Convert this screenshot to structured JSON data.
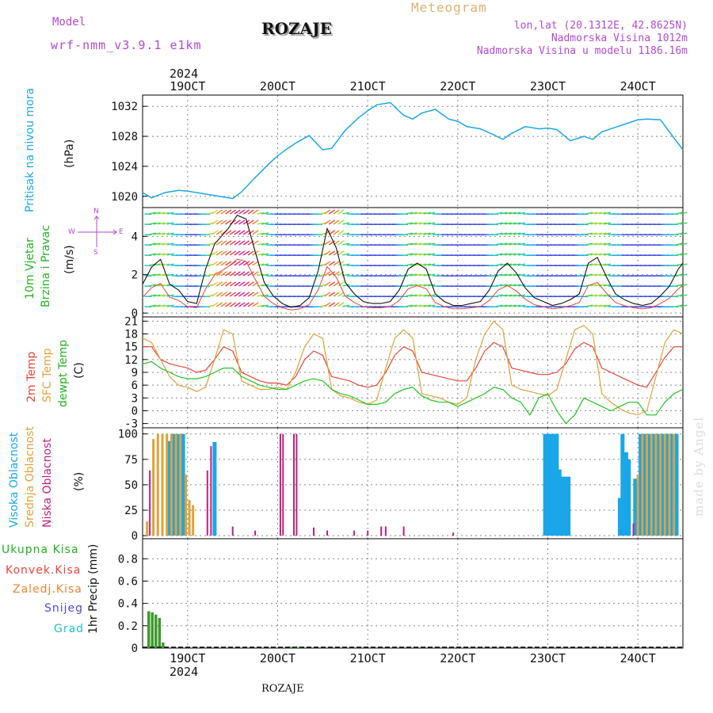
{
  "header": {
    "model_label": "Model",
    "model_name": "wrf-nmm_v3.9.1 e1km",
    "station": "ROZAJE",
    "meteogram": "Meteogram",
    "lonlat": "lon,lat (20.1312E, 42.8625N)",
    "elev": "Nadmorska Visina 1012m",
    "elev_model": "Nadmorska Visina u modelu 1186.16m",
    "year": "2024",
    "footer": "ROZAJE",
    "watermark": "made by Angel"
  },
  "colors": {
    "pressure": "#1aa6e8",
    "temp2m": "#e8453c",
    "sfc": "#e0a23a",
    "dew": "#22c322",
    "high": "#1aa6e8",
    "mid": "#e0a23a",
    "low": "#c0207e",
    "total": "#3d9b2d",
    "conv": "#e8453c",
    "frozen": "#f08232",
    "snow": "#4b4be0",
    "grad": "#22c3c3",
    "model": "#b04ad6"
  },
  "chart_data": [
    {
      "type": "line",
      "panel": "pressure",
      "ylabel_name": "Pritisak na nivou mora",
      "ylabel_unit": "(hPa)",
      "yticks": [
        1020,
        1024,
        1028,
        1032
      ],
      "ylim": [
        1018.5,
        1033.5
      ],
      "x": [
        18.5,
        18.6,
        18.75,
        18.9,
        19.0,
        19.2,
        19.35,
        19.5,
        19.6,
        19.75,
        19.9,
        20.0,
        20.1,
        20.2,
        20.35,
        20.5,
        20.6,
        20.75,
        20.9,
        21.0,
        21.1,
        21.25,
        21.4,
        21.5,
        21.6,
        21.75,
        21.9,
        22.0,
        22.1,
        22.25,
        22.4,
        22.5,
        22.6,
        22.75,
        22.9,
        23.0,
        23.1,
        23.25,
        23.4,
        23.5,
        23.6,
        23.75,
        23.9,
        24.0,
        24.1,
        24.25,
        24.4,
        24.5
      ],
      "values": [
        1020.5,
        1019.8,
        1020.5,
        1020.8,
        1020.7,
        1020.3,
        1020.0,
        1019.7,
        1020.6,
        1022.5,
        1024.3,
        1025.4,
        1026.3,
        1027.1,
        1028.1,
        1026.2,
        1026.4,
        1028.8,
        1030.5,
        1031.4,
        1032.2,
        1032.5,
        1030.8,
        1030.3,
        1031.1,
        1031.6,
        1030.3,
        1030.0,
        1029.3,
        1029.0,
        1028.2,
        1027.6,
        1028.4,
        1029.3,
        1029.0,
        1029.1,
        1028.9,
        1027.4,
        1028.0,
        1027.6,
        1028.6,
        1029.2,
        1029.8,
        1030.2,
        1030.3,
        1030.2,
        1027.8,
        1026.2
      ],
      "xticks": [
        "19OCT",
        "20OCT",
        "21OCT",
        "22OCT",
        "23OCT",
        "24OCT"
      ]
    },
    {
      "type": "line",
      "panel": "wind",
      "ylabel_name": "10m Vjetar",
      "ylabel_name2": "Brzina i Pravac",
      "ylabel_unit": "(m/s)",
      "compass_n": "N",
      "compass_w": "W",
      "compass_e": "E",
      "compass_s": "S",
      "yticks": [
        0,
        2,
        4
      ],
      "ylim": [
        -0.2,
        5.5
      ],
      "x": [
        18.5,
        18.6,
        18.7,
        18.8,
        18.9,
        19.0,
        19.1,
        19.2,
        19.3,
        19.45,
        19.55,
        19.65,
        19.75,
        19.85,
        19.95,
        20.05,
        20.15,
        20.25,
        20.35,
        20.45,
        20.55,
        20.65,
        20.75,
        20.85,
        20.95,
        21.05,
        21.15,
        21.25,
        21.35,
        21.45,
        21.55,
        21.65,
        21.75,
        21.85,
        21.95,
        22.05,
        22.15,
        22.25,
        22.35,
        22.45,
        22.55,
        22.65,
        22.75,
        22.85,
        22.95,
        23.05,
        23.15,
        23.25,
        23.35,
        23.45,
        23.55,
        23.65,
        23.75,
        23.85,
        23.95,
        24.05,
        24.15,
        24.25,
        24.35,
        24.45,
        24.5
      ],
      "values": [
        1.5,
        2.4,
        2.8,
        1.5,
        1.2,
        0.6,
        0.5,
        2.3,
        3.6,
        4.4,
        5.1,
        4.9,
        3.2,
        1.6,
        0.9,
        0.5,
        0.3,
        0.4,
        0.8,
        2.2,
        4.4,
        3.4,
        1.6,
        1.0,
        0.6,
        0.5,
        0.5,
        0.6,
        1.2,
        2.3,
        2.6,
        2.3,
        1.0,
        0.6,
        0.4,
        0.4,
        0.5,
        0.6,
        1.2,
        2.2,
        2.6,
        2.1,
        1.3,
        0.8,
        0.6,
        0.4,
        0.5,
        0.7,
        1.0,
        2.6,
        2.9,
        1.9,
        1.0,
        0.7,
        0.5,
        0.4,
        0.5,
        0.9,
        1.4,
        2.3,
        2.6
      ]
    },
    {
      "type": "line",
      "panel": "temperature",
      "ylabel_2m": "2m Temp",
      "ylabel_sfc": "SFC Temp",
      "ylabel_dew": "dewpt Temp",
      "ylabel_unit": "(C)",
      "yticks": [
        -3,
        0,
        3,
        6,
        9,
        12,
        15,
        18,
        21
      ],
      "ylim": [
        -4,
        22
      ],
      "x": [
        18.5,
        18.6,
        18.7,
        18.8,
        18.9,
        19.0,
        19.1,
        19.2,
        19.3,
        19.4,
        19.5,
        19.6,
        19.7,
        19.8,
        19.9,
        20.0,
        20.1,
        20.2,
        20.3,
        20.4,
        20.5,
        20.6,
        20.7,
        20.8,
        20.9,
        21.0,
        21.1,
        21.2,
        21.3,
        21.4,
        21.5,
        21.6,
        21.7,
        21.8,
        21.9,
        22.0,
        22.1,
        22.2,
        22.3,
        22.4,
        22.5,
        22.6,
        22.7,
        22.8,
        22.9,
        23.0,
        23.1,
        23.2,
        23.3,
        23.4,
        23.5,
        23.6,
        23.7,
        23.8,
        23.9,
        24.0,
        24.1,
        24.2,
        24.3,
        24.4,
        24.5
      ],
      "series": [
        {
          "name": "2m Temp",
          "values": [
            15,
            15,
            12,
            11,
            10.5,
            10,
            9,
            9.5,
            12,
            15,
            14,
            9,
            8,
            7,
            6.5,
            6.5,
            6,
            8,
            12,
            14,
            13,
            8,
            7.5,
            7,
            6,
            5.5,
            6,
            9,
            13,
            15,
            14,
            9,
            8.5,
            8,
            7.5,
            7,
            7,
            10,
            14,
            16,
            15,
            10,
            9.5,
            9,
            8.5,
            8.5,
            9,
            11,
            14.5,
            16,
            15,
            10,
            9,
            8,
            7,
            6,
            5.5,
            9,
            12.5,
            15,
            15
          ]
        },
        {
          "name": "SFC Temp",
          "values": [
            17,
            16,
            12,
            8,
            6,
            5.5,
            4.5,
            5.5,
            12,
            19,
            18,
            7,
            6,
            5,
            5,
            5.5,
            5,
            9,
            15,
            18,
            17,
            5,
            3.5,
            3,
            2,
            1.5,
            2.5,
            10,
            17,
            19,
            17,
            4,
            3.5,
            3,
            2,
            1.5,
            3,
            12,
            18,
            21,
            19,
            6,
            5,
            4.5,
            4,
            3.5,
            5,
            12,
            19,
            20,
            18,
            4,
            2,
            0.5,
            -0.5,
            -1,
            0,
            8,
            16,
            19,
            18
          ]
        },
        {
          "name": "dewpt Temp",
          "values": [
            11,
            11.5,
            10,
            9,
            8,
            7.5,
            7.5,
            8,
            9,
            10,
            10,
            8,
            7,
            6,
            5.5,
            5,
            5,
            6,
            7,
            7.5,
            7,
            5,
            4,
            3.5,
            2.5,
            1.5,
            1.5,
            2,
            4,
            5,
            5.5,
            3.5,
            2.5,
            2,
            2,
            1,
            2,
            3,
            4,
            5.5,
            5,
            3,
            2,
            -1,
            3,
            4,
            0,
            -3,
            -1,
            3,
            2,
            1,
            0,
            1,
            2,
            2,
            -1,
            -1,
            2,
            4,
            5
          ]
        }
      ]
    },
    {
      "type": "bar",
      "panel": "clouds",
      "ylabel_high": "Visoka Oblacnost",
      "ylabel_mid": "Srednja Oblacnost",
      "ylabel_low": "Niska Oblacnost",
      "ylabel_unit": "(%)",
      "yticks": [
        0,
        25,
        50,
        75,
        100
      ],
      "ylim": [
        -3,
        106
      ],
      "series": [
        {
          "name": "Visoka Oblacnost",
          "x": [
            18.8,
            18.85,
            18.9,
            18.95,
            19.3,
            22.97,
            23.0,
            23.03,
            23.07,
            23.1,
            23.13,
            23.17,
            23.2,
            23.23,
            23.8,
            23.83,
            23.87,
            23.9,
            23.97,
            24.0,
            24.03,
            24.07,
            24.1,
            24.13,
            24.17,
            24.2,
            24.23,
            24.27,
            24.3,
            24.33,
            24.37,
            24.4,
            24.43
          ],
          "values": [
            93,
            100,
            100,
            100,
            92,
            100,
            100,
            100,
            100,
            100,
            65,
            58,
            58,
            58,
            37,
            100,
            82,
            75,
            56,
            49,
            100,
            100,
            100,
            100,
            100,
            100,
            100,
            100,
            100,
            100,
            100,
            100,
            100
          ]
        },
        {
          "name": "Srednja Oblacnost",
          "x": [
            18.55,
            18.62,
            18.67,
            18.72,
            18.77,
            18.82,
            18.87,
            18.92,
            18.98,
            19.02,
            19.06,
            24.0,
            24.05,
            24.1,
            24.15,
            24.2,
            24.25,
            24.3,
            24.35,
            24.4
          ],
          "values": [
            14,
            95,
            100,
            100,
            100,
            100,
            100,
            100,
            60,
            35,
            30,
            60,
            100,
            100,
            100,
            100,
            100,
            100,
            100,
            100
          ]
        },
        {
          "name": "Niska Oblacnost",
          "x": [
            18.58,
            19.22,
            19.26,
            19.5,
            19.75,
            20.03,
            20.06,
            20.18,
            20.21,
            20.4,
            20.55,
            20.85,
            21.0,
            21.15,
            21.2,
            21.4,
            21.95,
            23.95
          ],
          "values": [
            64,
            64,
            88,
            9,
            5,
            100,
            100,
            100,
            100,
            8,
            5,
            5,
            5,
            9,
            9,
            9,
            3,
            12
          ]
        }
      ]
    },
    {
      "type": "bar",
      "panel": "precipitation",
      "ylabel_total": "Ukupna Kisa",
      "ylabel_conv": "Konvek.Kisa",
      "ylabel_frozen": "Zaledj.Kisa",
      "ylabel_snow": "Snijeg",
      "ylabel_grad": "Grad",
      "ylabel_unit": "1hr Precip (mm)",
      "yticks": [
        0,
        0.2,
        0.4,
        0.6,
        0.8
      ],
      "ylim": [
        0,
        0.98
      ],
      "series": [
        {
          "name": "Ukupna Kisa",
          "x": [
            18.57,
            18.61,
            18.65,
            18.69,
            18.73,
            20.15,
            20.2,
            20.25
          ],
          "values": [
            0.33,
            0.32,
            0.3,
            0.27,
            0.05,
            0.01,
            0.01,
            0.01
          ]
        }
      ]
    }
  ]
}
